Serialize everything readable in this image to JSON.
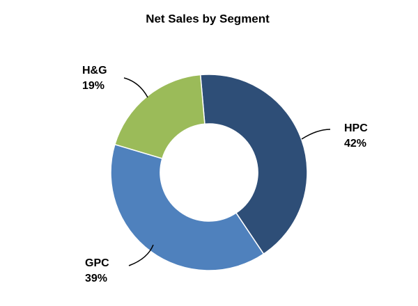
{
  "chart_data": {
    "type": "donut",
    "title": "Net Sales by Segment",
    "categories": [
      "HPC",
      "GPC",
      "H&G"
    ],
    "values": [
      42,
      39,
      19
    ],
    "value_labels": [
      "42%",
      "39%",
      "19%"
    ],
    "colors": [
      "#2e4e77",
      "#4f81bd",
      "#9bbb59"
    ]
  }
}
